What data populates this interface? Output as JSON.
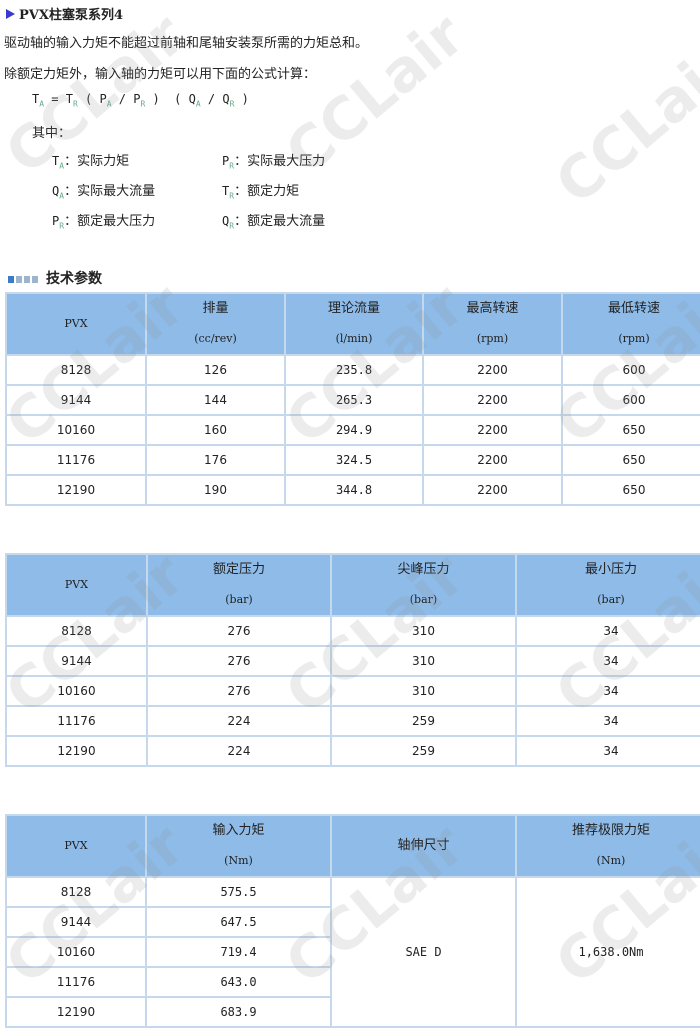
{
  "title": "PVX柱塞泵系列4",
  "para1": "驱动轴的输入力矩不能超过前轴和尾轴安装泵所需的力矩总和。",
  "para2": "除额定力矩外，输入轴的力矩可以用下面的公式计算：",
  "formula": "T_A = T_R ( P_A / P_R ) ( Q_A / Q_R )",
  "where": "其中：",
  "defs": [
    {
      "sym": "T",
      "sub": "A",
      "text": "：实际力矩"
    },
    {
      "sym": "P",
      "sub": "R",
      "text": "：实际最大压力"
    },
    {
      "sym": "Q",
      "sub": "A",
      "text": "：实际最大流量"
    },
    {
      "sym": "T",
      "sub": "R",
      "text": "：额定力矩"
    },
    {
      "sym": "P",
      "sub": "R",
      "text": "：额定最大压力"
    },
    {
      "sym": "Q",
      "sub": "R",
      "text": "：额定最大流量"
    }
  ],
  "section": "技术参数",
  "watermark": "CCLair",
  "table1": {
    "headers": [
      [
        "PVX",
        ""
      ],
      [
        "排量",
        "(cc/rev)"
      ],
      [
        "理论流量",
        "(l/min)"
      ],
      [
        "最高转速",
        "(rpm)"
      ],
      [
        "最低转速",
        "(rpm)"
      ]
    ],
    "rows": [
      [
        "8128",
        "126",
        "235.8",
        "2200",
        "600"
      ],
      [
        "9144",
        "144",
        "265.3",
        "2200",
        "600"
      ],
      [
        "10160",
        "160",
        "294.9",
        "2200",
        "650"
      ],
      [
        "11176",
        "176",
        "324.5",
        "2200",
        "650"
      ],
      [
        "12190",
        "190",
        "344.8",
        "2200",
        "650"
      ]
    ]
  },
  "table2": {
    "headers": [
      [
        "PVX",
        ""
      ],
      [
        "额定压力",
        "(bar)"
      ],
      [
        "尖峰压力",
        "(bar)"
      ],
      [
        "最小压力",
        "(bar)"
      ]
    ],
    "rows": [
      [
        "8128",
        "276",
        "310",
        "34"
      ],
      [
        "9144",
        "276",
        "310",
        "34"
      ],
      [
        "10160",
        "276",
        "310",
        "34"
      ],
      [
        "11176",
        "224",
        "259",
        "34"
      ],
      [
        "12190",
        "224",
        "259",
        "34"
      ]
    ]
  },
  "table3": {
    "headers": [
      [
        "PVX",
        ""
      ],
      [
        "输入力矩",
        "(Nm)"
      ],
      [
        "轴伸尺寸",
        ""
      ],
      [
        "推荐极限力矩",
        "(Nm)"
      ]
    ],
    "rows": [
      [
        "8128",
        "575.5"
      ],
      [
        "9144",
        "647.5"
      ],
      [
        "10160",
        "719.4"
      ],
      [
        "11176",
        "643.0"
      ],
      [
        "12190",
        "683.9"
      ]
    ],
    "shaft": "SAE D",
    "limit": "1,638.0Nm"
  }
}
